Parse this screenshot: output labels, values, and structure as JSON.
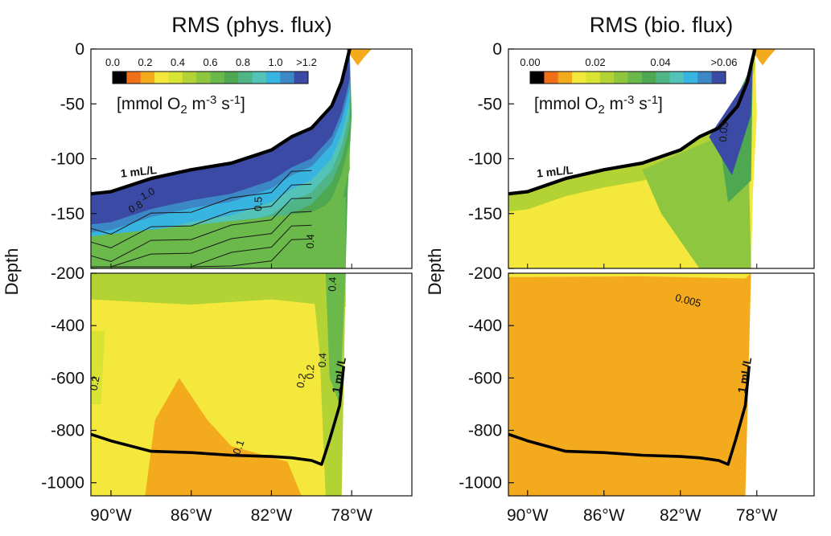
{
  "chart_data": [
    {
      "type": "heatmap",
      "title": "RMS (phys. flux)",
      "ylabel": "Depth",
      "xlabel": "",
      "x_ticks": [
        "90°W",
        "86°W",
        "82°W",
        "78°W"
      ],
      "x_range_deg_w": [
        91,
        75
      ],
      "upper_panel": {
        "ylim": [
          -200,
          0
        ],
        "y_ticks": [
          "0",
          "-50",
          "-100",
          "-150",
          "-200"
        ]
      },
      "lower_panel": {
        "ylim": [
          -1050,
          -200
        ],
        "y_ticks": [
          "-200",
          "-400",
          "-600",
          "-800",
          "-1000"
        ]
      },
      "colorbar": {
        "ticks": [
          "0.0",
          "0.2",
          "0.4",
          "0.6",
          "0.8",
          "1.0",
          ">1.2"
        ],
        "unit_text": "[mmol  O2 m-3 s-1]",
        "colors": [
          "#000000",
          "#f0701a",
          "#f4aa1d",
          "#f3e83b",
          "#d8e334",
          "#b3d234",
          "#8ec63f",
          "#6ab94a",
          "#4ea852",
          "#4fb587",
          "#53c2b7",
          "#38b4e1",
          "#3c87c6",
          "#3b4ba5"
        ]
      },
      "contour_labels": [
        "0.8",
        "1.0",
        "0.5",
        "0.4",
        "0.4",
        "0.2",
        "0.2",
        "0.4",
        "0.2",
        "0.1"
      ],
      "oxycline_label": "1 mL/L",
      "oxycline_1mlL_upper": {
        "x_deg_w": [
          91,
          90,
          88,
          86,
          84,
          82,
          81,
          80,
          79,
          78.5,
          78.3,
          78.1
        ],
        "depth": [
          -132,
          -130,
          -118,
          -110,
          -104,
          -92,
          -80,
          -72,
          -52,
          -30,
          -15,
          0
        ]
      },
      "oxycline_1mlL_lower": {
        "x_deg_w": [
          91,
          90,
          88,
          86,
          84,
          82,
          81,
          80,
          79.5,
          79.1,
          78.6,
          78.4
        ],
        "depth": [
          -815,
          -840,
          -880,
          -885,
          -895,
          -900,
          -905,
          -915,
          -930,
          -835,
          -705,
          -555
        ]
      }
    },
    {
      "type": "heatmap",
      "title": "RMS (bio. flux)",
      "ylabel": "Depth",
      "xlabel": "",
      "x_ticks": [
        "90°W",
        "86°W",
        "82°W",
        "78°W"
      ],
      "x_range_deg_w": [
        91,
        75
      ],
      "upper_panel": {
        "ylim": [
          -200,
          0
        ],
        "y_ticks": [
          "0",
          "-50",
          "-100",
          "-150",
          "-200"
        ]
      },
      "lower_panel": {
        "ylim": [
          -1050,
          -200
        ],
        "y_ticks": [
          "-200",
          "-400",
          "-600",
          "-800",
          "-1000"
        ]
      },
      "colorbar": {
        "ticks": [
          "0.00",
          "0.02",
          "0.04",
          ">0.06"
        ],
        "unit_text": "[mmol  O2 m-3 s-1]",
        "colors": [
          "#000000",
          "#f0701a",
          "#f4aa1d",
          "#f3e83b",
          "#d8e334",
          "#b3d234",
          "#8ec63f",
          "#6ab94a",
          "#4ea852",
          "#4fb587",
          "#53c2b7",
          "#38b4e1",
          "#3c87c6",
          "#3b4ba5"
        ]
      },
      "contour_labels": [
        "0.005",
        "0.03"
      ],
      "oxycline_label": "1 mL/L",
      "oxycline_1mlL_upper": {
        "x_deg_w": [
          91,
          90,
          88,
          86,
          84,
          82,
          81,
          80,
          79,
          78.5,
          78.3,
          78.1
        ],
        "depth": [
          -132,
          -130,
          -118,
          -110,
          -104,
          -92,
          -80,
          -72,
          -52,
          -30,
          -15,
          0
        ]
      },
      "oxycline_1mlL_lower": {
        "x_deg_w": [
          91,
          90,
          88,
          86,
          84,
          82,
          81,
          80,
          79.5,
          79.1,
          78.6,
          78.4
        ],
        "depth": [
          -815,
          -840,
          -880,
          -885,
          -895,
          -900,
          -905,
          -915,
          -930,
          -835,
          -705,
          -555
        ]
      }
    }
  ]
}
